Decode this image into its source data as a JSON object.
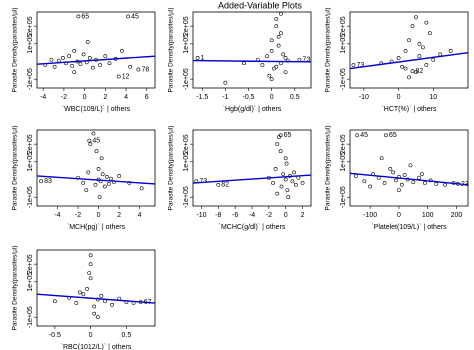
{
  "title": "Added-Variable Plots",
  "chart_data": [
    {
      "type": "scatter",
      "x_label": "`WBC(109/L)` | others",
      "y_label": "Parasite Density(parasites/µl)",
      "xlim": [
        -4.6,
        6.8
      ],
      "ylim": [
        -150000,
        280000
      ],
      "xticks": [
        -4,
        -2,
        0,
        2,
        4,
        6
      ],
      "yticks": [
        {
          "value": -100000,
          "label": "-1e+05"
        },
        {
          "value": 100000,
          "label": "1e+05"
        },
        {
          "value": 200000,
          "label": "2e+05"
        }
      ],
      "color": "#000000",
      "x": [
        -3.8,
        -3.2,
        -2.9,
        -2.5,
        -2.1,
        -1.8,
        -1.5,
        -1.2,
        -1.0,
        -0.7,
        -0.4,
        -0.1,
        0.2,
        0.5,
        0.8,
        1.1,
        1.5,
        2.0,
        2.4,
        3.0,
        3.6,
        4.4,
        -1.0,
        0.3
      ],
      "y": [
        -20000,
        10000,
        -30000,
        5000,
        20000,
        -10000,
        30000,
        -25000,
        60000,
        0,
        -15000,
        40000,
        -5000,
        20000,
        -35000,
        10000,
        -20000,
        30000,
        -10000,
        15000,
        60000,
        -30000,
        -60000,
        110000
      ],
      "point_labels": [
        {
          "label": "65",
          "x": -0.6,
          "y": 255000
        },
        {
          "label": "45",
          "x": 4.2,
          "y": 255000
        },
        {
          "label": "78",
          "x": 5.2,
          "y": -45000
        },
        {
          "label": "12",
          "x": 3.3,
          "y": -85000
        }
      ],
      "fit": {
        "color": "#0000cc",
        "x": [
          -4.6,
          6.8
        ],
        "y": [
          -15000,
          30000
        ]
      }
    },
    {
      "type": "scatter",
      "x_label": "`Hgb(g/dl)` | others",
      "y_label": "Parasite Density(parasites/µl)",
      "xlim": [
        -1.7,
        0.85
      ],
      "ylim": [
        -150000,
        280000
      ],
      "xticks": [
        -1.5,
        -1.0,
        -0.5,
        0.0,
        0.5
      ],
      "yticks": [
        {
          "value": -100000,
          "label": "-1e+05"
        },
        {
          "value": 100000,
          "label": "1e+05"
        },
        {
          "value": 200000,
          "label": "2e+05"
        }
      ],
      "color": "#000000",
      "x": [
        -0.3,
        -0.2,
        -0.1,
        0,
        0,
        0.05,
        0.1,
        0.1,
        0.15,
        0.2,
        0.2,
        0.25,
        0.3,
        0.3,
        0.35,
        -0.05,
        0.1,
        0.2,
        0.0,
        0.15,
        -0.6,
        -1.0
      ],
      "y": [
        10000,
        -20000,
        30000,
        60000,
        120000,
        -40000,
        200000,
        240000,
        90000,
        -10000,
        160000,
        40000,
        -60000,
        20000,
        5000,
        -80000,
        -30000,
        270000,
        -100000,
        140000,
        -10000,
        -120000
      ],
      "point_labels": [
        {
          "label": "1",
          "x": -1.6,
          "y": 20000
        },
        {
          "label": "73",
          "x": 0.6,
          "y": 10000
        }
      ],
      "fit": {
        "color": "#0000cc",
        "x": [
          -1.7,
          0.85
        ],
        "y": [
          5000,
          -2000
        ]
      }
    },
    {
      "type": "scatter",
      "x_label": "`HCT(%)` | others",
      "y_label": "Parasite Density(parasites/µl)",
      "xlim": [
        -14,
        20
      ],
      "ylim": [
        -150000,
        280000
      ],
      "xticks": [
        -10,
        0,
        10
      ],
      "yticks": [
        {
          "value": -100000,
          "label": "-1e+05"
        },
        {
          "value": 100000,
          "label": "1e+05"
        },
        {
          "value": 200000,
          "label": "2e+05"
        }
      ],
      "color": "#000000",
      "x": [
        -2,
        0,
        1,
        2,
        3,
        4,
        5,
        5,
        6,
        7,
        8,
        9,
        10,
        12,
        15,
        3,
        6,
        8,
        -5,
        2
      ],
      "y": [
        0,
        20000,
        -30000,
        60000,
        120000,
        200000,
        250000,
        -60000,
        30000,
        80000,
        -20000,
        160000,
        10000,
        40000,
        60000,
        -90000,
        100000,
        220000,
        -10000,
        -40000
      ],
      "point_labels": [
        {
          "label": "73",
          "x": -13,
          "y": -20000
        },
        {
          "label": "82",
          "x": 4,
          "y": -55000
        }
      ],
      "fit": {
        "color": "#0000cc",
        "x": [
          -14,
          20
        ],
        "y": [
          -40000,
          50000
        ]
      }
    },
    {
      "type": "scatter",
      "x_label": "`MCH(pg)` | others",
      "y_label": "Parasite Density(parasites/µl)",
      "xlim": [
        -6,
        5.5
      ],
      "ylim": [
        -150000,
        280000
      ],
      "xticks": [
        -4,
        -2,
        0,
        2,
        4
      ],
      "yticks": [
        {
          "value": -100000,
          "label": "-1e+05"
        },
        {
          "value": 100000,
          "label": "1e+05"
        },
        {
          "value": 200000,
          "label": "2e+05"
        }
      ],
      "color": "#000000",
      "x": [
        -2,
        -1.5,
        -1,
        -0.8,
        -0.5,
        -0.3,
        0,
        0,
        0.2,
        0.4,
        0.6,
        0.8,
        1,
        1.2,
        1.5,
        2,
        -0.2,
        0.3,
        -1.2,
        3,
        4.2,
        0.1
      ],
      "y": [
        10000,
        -20000,
        40000,
        200000,
        260000,
        -30000,
        0,
        60000,
        -10000,
        30000,
        -40000,
        15000,
        -25000,
        5000,
        -15000,
        20000,
        160000,
        120000,
        -60000,
        -20000,
        -50000,
        -100000
      ],
      "point_labels": [
        {
          "label": "45",
          "x": -0.9,
          "y": 220000
        },
        {
          "label": "83",
          "x": -5.6,
          "y": -10000
        }
      ],
      "fit": {
        "color": "#0000cc",
        "x": [
          -6,
          5.5
        ],
        "y": [
          20000,
          -25000
        ]
      }
    },
    {
      "type": "scatter",
      "x_label": "`MCHC(g/dl)` | others",
      "y_label": "Parasite Density(parasites/µl)",
      "xlim": [
        -11,
        3
      ],
      "ylim": [
        -150000,
        280000
      ],
      "xticks": [
        -10,
        -8,
        -6,
        -4,
        -2,
        0,
        2
      ],
      "yticks": [
        {
          "value": -100000,
          "label": "-1e+05"
        },
        {
          "value": 100000,
          "label": "1e+05"
        },
        {
          "value": 200000,
          "label": "2e+05"
        }
      ],
      "color": "#000000",
      "x": [
        -2,
        -1.5,
        -1.2,
        -1,
        -0.8,
        -0.5,
        -0.3,
        0,
        0,
        0.2,
        0.5,
        0.8,
        1,
        1.2,
        1.5,
        2,
        -0.6,
        0.3,
        -1,
        0.1
      ],
      "y": [
        10000,
        -20000,
        60000,
        200000,
        240000,
        -40000,
        30000,
        0,
        120000,
        -60000,
        20000,
        -10000,
        40000,
        -30000,
        10000,
        -20000,
        160000,
        -100000,
        -80000,
        90000
      ],
      "point_labels": [
        {
          "label": "65",
          "x": -0.6,
          "y": 250000
        },
        {
          "label": "73",
          "x": -10.6,
          "y": -10000
        },
        {
          "label": "82",
          "x": -8,
          "y": -30000
        }
      ],
      "fit": {
        "color": "#0000cc",
        "x": [
          -11,
          3
        ],
        "y": [
          -20000,
          25000
        ]
      }
    },
    {
      "type": "scatter",
      "x_label": "`Platelet(109/L)` | others",
      "y_label": "Parasite Density(parasites/µl)",
      "xlim": [
        -170,
        240
      ],
      "ylim": [
        -150000,
        280000
      ],
      "xticks": [
        -100,
        0,
        100,
        200
      ],
      "yticks": [
        {
          "value": -100000,
          "label": "-1e+05"
        },
        {
          "value": 100000,
          "label": "1e+05"
        },
        {
          "value": 200000,
          "label": "2e+05"
        }
      ],
      "color": "#000000",
      "x": [
        -150,
        -120,
        -90,
        -70,
        -50,
        -30,
        -20,
        -10,
        0,
        10,
        20,
        30,
        50,
        70,
        90,
        110,
        130,
        160,
        190,
        -60,
        0,
        40,
        -100,
        80
      ],
      "y": [
        20000,
        -10000,
        30000,
        10000,
        -20000,
        60000,
        40000,
        -5000,
        15000,
        -30000,
        25000,
        0,
        -15000,
        10000,
        -20000,
        -5000,
        -25000,
        -30000,
        -20000,
        120000,
        -60000,
        80000,
        -40000,
        30000
      ],
      "point_labels": [
        {
          "label": "45",
          "x": -145,
          "y": 250000
        },
        {
          "label": "65",
          "x": -45,
          "y": 250000
        },
        {
          "label": "23",
          "x": 205,
          "y": -25000
        }
      ],
      "fit": {
        "color": "#0000cc",
        "x": [
          -170,
          240
        ],
        "y": [
          35000,
          -30000
        ]
      }
    },
    {
      "type": "scatter",
      "x_label": "`RBC(1012/L)` | others",
      "y_label": "Parasite Density(parasites/µl)",
      "xlim": [
        -0.75,
        0.9
      ],
      "ylim": [
        -150000,
        280000
      ],
      "xticks": [
        -0.5,
        0.0,
        0.5
      ],
      "yticks": [
        {
          "value": -100000,
          "label": "-1e+05"
        },
        {
          "value": 100000,
          "label": "1e+05"
        },
        {
          "value": 200000,
          "label": "2e+05"
        }
      ],
      "color": "#000000",
      "x": [
        -0.3,
        -0.2,
        -0.1,
        -0.05,
        0,
        0,
        0.05,
        0.1,
        0.15,
        0.2,
        0.3,
        0.4,
        0.5,
        -0.5,
        0,
        0.05,
        -0.02,
        0.1,
        0.6,
        -0.15
      ],
      "y": [
        10000,
        -20000,
        30000,
        60000,
        250000,
        200000,
        -40000,
        0,
        20000,
        -10000,
        -30000,
        5000,
        -15000,
        -10000,
        120000,
        -80000,
        150000,
        -100000,
        -20000,
        40000
      ],
      "point_labels": [
        {
          "label": "67",
          "x": 0.7,
          "y": -15000
        }
      ],
      "fit": {
        "color": "#0000cc",
        "x": [
          -0.75,
          0.9
        ],
        "y": [
          30000,
          -20000
        ]
      }
    }
  ]
}
